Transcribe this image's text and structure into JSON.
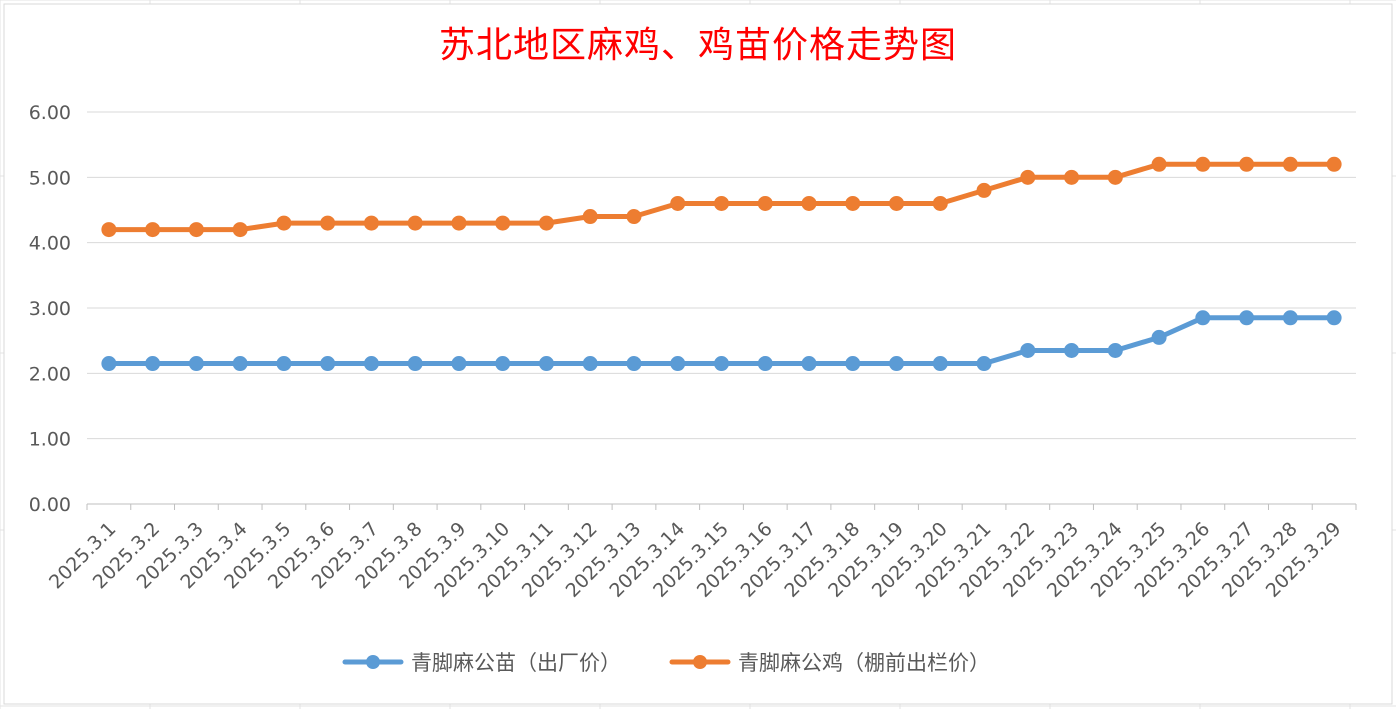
{
  "chart_data": {
    "type": "line",
    "title": "苏北地区麻鸡、鸡苗价格走势图",
    "xlabel": "",
    "ylabel": "",
    "categories": [
      "2025.3.1",
      "2025.3.2",
      "2025.3.3",
      "2025.3.4",
      "2025.3.5",
      "2025.3.6",
      "2025.3.7",
      "2025.3.8",
      "2025.3.9",
      "2025.3.10",
      "2025.3.11",
      "2025.3.12",
      "2025.3.13",
      "2025.3.14",
      "2025.3.15",
      "2025.3.16",
      "2025.3.17",
      "2025.3.18",
      "2025.3.19",
      "2025.3.20",
      "2025.3.21",
      "2025.3.22",
      "2025.3.23",
      "2025.3.24",
      "2025.3.25",
      "2025.3.26",
      "2025.3.27",
      "2025.3.28",
      "2025.3.29"
    ],
    "ylim": [
      0,
      6
    ],
    "yticks": [
      "0.00",
      "1.00",
      "2.00",
      "3.00",
      "4.00",
      "5.00",
      "6.00"
    ],
    "grid": true,
    "legend_position": "bottom",
    "series": [
      {
        "name": "青脚麻公苗（出厂价）",
        "color": "#5b9bd5",
        "values": [
          2.15,
          2.15,
          2.15,
          2.15,
          2.15,
          2.15,
          2.15,
          2.15,
          2.15,
          2.15,
          2.15,
          2.15,
          2.15,
          2.15,
          2.15,
          2.15,
          2.15,
          2.15,
          2.15,
          2.15,
          2.15,
          2.35,
          2.35,
          2.35,
          2.55,
          2.85,
          2.85,
          2.85,
          2.85
        ]
      },
      {
        "name": "青脚麻公鸡（棚前出栏价）",
        "color": "#ed7d31",
        "values": [
          4.2,
          4.2,
          4.2,
          4.2,
          4.3,
          4.3,
          4.3,
          4.3,
          4.3,
          4.3,
          4.3,
          4.4,
          4.4,
          4.6,
          4.6,
          4.6,
          4.6,
          4.6,
          4.6,
          4.6,
          4.8,
          5.0,
          5.0,
          5.0,
          5.2,
          5.2,
          5.2,
          5.2,
          5.2
        ]
      }
    ]
  }
}
